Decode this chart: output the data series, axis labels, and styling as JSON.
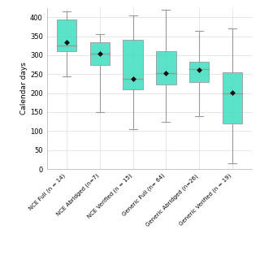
{
  "categories": [
    "NCE Full (n = 14)",
    "NCE Abridged (n=7)",
    "NCE Verified (n = 15)",
    "Generic Full (n= 64)",
    "Generic Abridged (n=26)",
    "Generic Verified (n = 19)"
  ],
  "boxes": [
    {
      "whisker_low": 245,
      "q1": 310,
      "median": 325,
      "q3": 395,
      "whisker_high": 415,
      "mean": 335
    },
    {
      "whisker_low": 150,
      "q1": 275,
      "median": 305,
      "q3": 335,
      "whisker_high": 355,
      "mean": 304
    },
    {
      "whisker_low": 105,
      "q1": 210,
      "median": 237,
      "q3": 340,
      "whisker_high": 405,
      "mean": 237
    },
    {
      "whisker_low": 125,
      "q1": 222,
      "median": 253,
      "q3": 310,
      "whisker_high": 420,
      "mean": 252
    },
    {
      "whisker_low": 140,
      "q1": 230,
      "median": 263,
      "q3": 282,
      "whisker_high": 365,
      "mean": 262
    },
    {
      "whisker_low": 15,
      "q1": 120,
      "median": 200,
      "q3": 255,
      "whisker_high": 370,
      "mean": 201
    }
  ],
  "ylabel": "Calendar days",
  "ylim": [
    0,
    425
  ],
  "yticks": [
    0,
    50,
    100,
    150,
    200,
    250,
    300,
    350,
    400
  ],
  "box_color": "#3DDFC0",
  "box_edge_color": "#999999",
  "whisker_color": "#999999",
  "median_color": "#999999",
  "mean_marker_color": "#111111",
  "background_color": "#ffffff",
  "grid_color": "#dddddd",
  "figsize": [
    3.2,
    3.2
  ],
  "dpi": 100
}
